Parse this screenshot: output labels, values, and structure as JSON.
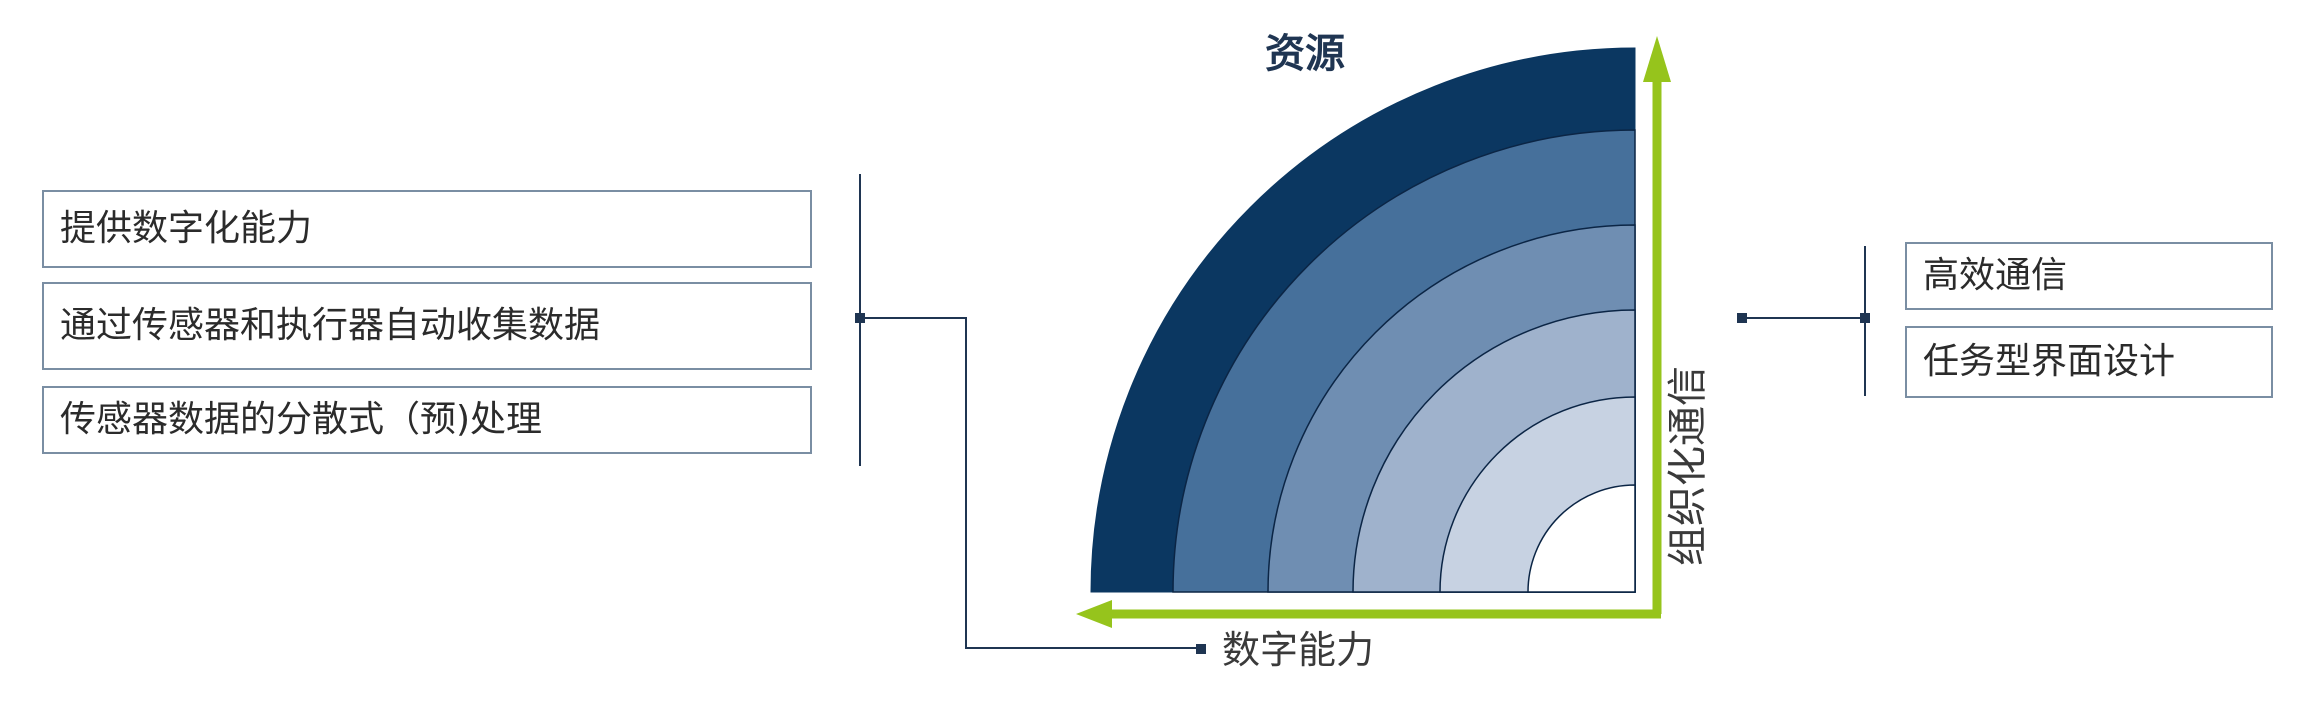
{
  "diagram": {
    "title": "资源",
    "left_items": [
      {
        "label": "提供数字化能力"
      },
      {
        "label": "通过传感器和执行器自动收集数据"
      },
      {
        "label": "传感器数据的分散式（预)处理"
      }
    ],
    "right_items": [
      {
        "label": "高效通信"
      },
      {
        "label": "任务型界面设计"
      }
    ],
    "x_axis_label": "数字能力",
    "y_axis_label": "组织化通信",
    "colors": {
      "ring_1": "#0b3761",
      "ring_2": "#46709b",
      "ring_3": "#6f8eb2",
      "ring_4": "#9fb2cc",
      "ring_5": "#c7d2e2",
      "axis_arrow": "#96c41c",
      "connector": "#1f3552",
      "box_border": "#7a8ea3"
    }
  }
}
